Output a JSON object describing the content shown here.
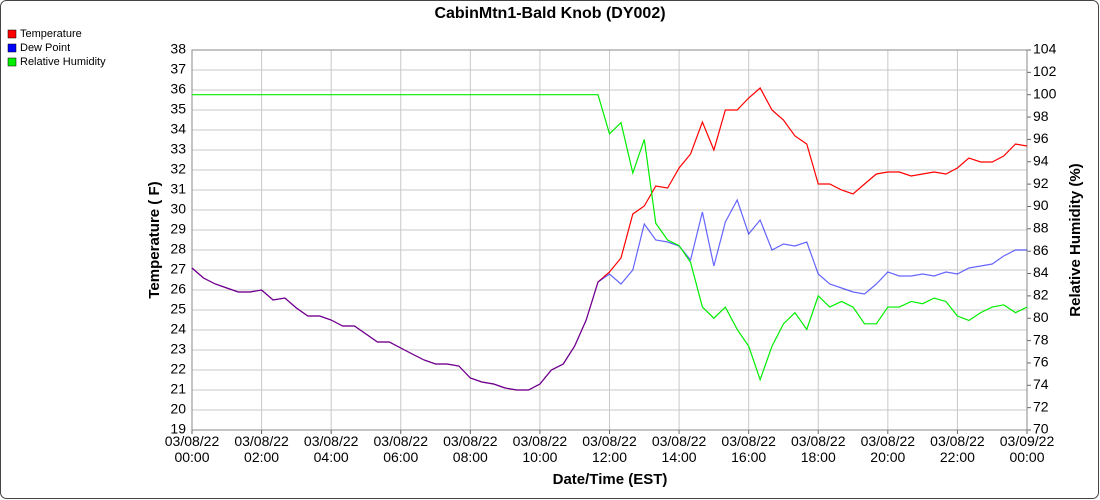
{
  "chart_data": {
    "type": "line",
    "title": "CabinMtn1-Bald Knob (DY002)",
    "x_label": "Date/Time (EST)",
    "y_label": "Temperature ( F)",
    "y2_label": "Relative Humidity (%)",
    "x": [
      0,
      0.33,
      0.67,
      1,
      1.33,
      1.67,
      2,
      2.33,
      2.67,
      3,
      3.33,
      3.67,
      4,
      4.33,
      4.67,
      5,
      5.33,
      5.67,
      6,
      6.33,
      6.67,
      7,
      7.33,
      7.67,
      8,
      8.33,
      8.67,
      9,
      9.33,
      9.67,
      10,
      10.33,
      10.67,
      11,
      11.33,
      11.67,
      12,
      12.33,
      12.67,
      13,
      13.33,
      13.67,
      14,
      14.33,
      14.67,
      15,
      15.33,
      15.67,
      16,
      16.33,
      16.67,
      17,
      17.33,
      17.67,
      18,
      18.33,
      18.67,
      19,
      19.33,
      19.67,
      20,
      20.33,
      20.67,
      21,
      21.33,
      21.67,
      22,
      22.33,
      22.67,
      23,
      23.33,
      23.67,
      24
    ],
    "series": [
      {
        "name": "Temperature",
        "color": "#ff0000",
        "values": [
          27.1,
          26.6,
          26.3,
          26.1,
          25.9,
          25.9,
          26.0,
          25.5,
          25.6,
          25.1,
          24.7,
          24.7,
          24.5,
          24.2,
          24.2,
          23.8,
          23.4,
          23.4,
          23.1,
          22.8,
          22.5,
          22.3,
          22.3,
          22.2,
          21.6,
          21.4,
          21.3,
          21.1,
          21.0,
          21.0,
          21.3,
          22.0,
          22.3,
          23.2,
          24.5,
          26.4,
          26.9,
          27.6,
          29.8,
          30.2,
          31.2,
          31.1,
          32.1,
          32.8,
          34.4,
          33.0,
          35.0,
          35.0,
          35.6,
          36.1,
          35.0,
          34.5,
          33.7,
          33.3,
          31.3,
          31.3,
          31.0,
          30.8,
          31.3,
          31.8,
          31.9,
          31.9,
          31.7,
          31.8,
          31.9,
          31.8,
          32.1,
          32.6,
          32.4,
          32.4,
          32.7,
          33.3,
          33.2
        ]
      },
      {
        "name": "Dew Point",
        "color": "#0000ff",
        "values": [
          27.1,
          26.6,
          26.3,
          26.1,
          25.9,
          25.9,
          26.0,
          25.5,
          25.6,
          25.1,
          24.7,
          24.7,
          24.5,
          24.2,
          24.2,
          23.8,
          23.4,
          23.4,
          23.1,
          22.8,
          22.5,
          22.3,
          22.3,
          22.2,
          21.6,
          21.4,
          21.3,
          21.1,
          21.0,
          21.0,
          21.3,
          22.0,
          22.3,
          23.2,
          24.5,
          26.4,
          26.8,
          26.3,
          27.0,
          29.3,
          28.5,
          28.4,
          28.2,
          27.5,
          29.9,
          27.2,
          29.4,
          30.5,
          28.8,
          29.5,
          28.0,
          28.3,
          28.2,
          28.4,
          26.8,
          26.3,
          26.1,
          25.9,
          25.8,
          26.3,
          26.9,
          26.7,
          26.7,
          26.8,
          26.7,
          26.9,
          26.8,
          27.1,
          27.2,
          27.3,
          27.7,
          28.0,
          28.0
        ]
      },
      {
        "name": "Relative Humidity",
        "color": "#00ee00",
        "axis": "y2",
        "values": [
          100,
          100,
          100,
          100,
          100,
          100,
          100,
          100,
          100,
          100,
          100,
          100,
          100,
          100,
          100,
          100,
          100,
          100,
          100,
          100,
          100,
          100,
          100,
          100,
          100,
          100,
          100,
          100,
          100,
          100,
          100,
          100,
          100,
          100,
          100,
          100,
          96.5,
          97.5,
          93,
          96,
          88.5,
          87,
          86.5,
          85,
          81,
          80,
          81,
          79,
          77.5,
          74.5,
          77.5,
          79.5,
          80.5,
          79,
          82,
          81,
          81.5,
          81,
          79.5,
          79.5,
          81,
          81,
          81.5,
          81.3,
          81.8,
          81.5,
          80.2,
          79.8,
          80.5,
          81,
          81.2,
          80.5,
          81
        ]
      }
    ],
    "xlim": [
      0,
      24
    ],
    "xticks": [
      {
        "value": 0,
        "label": "03/08/22 00:00"
      },
      {
        "value": 2,
        "label": "03/08/22 02:00"
      },
      {
        "value": 4,
        "label": "03/08/22 04:00"
      },
      {
        "value": 6,
        "label": "03/08/22 06:00"
      },
      {
        "value": 8,
        "label": "03/08/22 08:00"
      },
      {
        "value": 10,
        "label": "03/08/22 10:00"
      },
      {
        "value": 12,
        "label": "03/08/22 12:00"
      },
      {
        "value": 14,
        "label": "03/08/22 14:00"
      },
      {
        "value": 16,
        "label": "03/08/22 16:00"
      },
      {
        "value": 18,
        "label": "03/08/22 18:00"
      },
      {
        "value": 20,
        "label": "03/08/22 20:00"
      },
      {
        "value": 22,
        "label": "03/08/22 22:00"
      },
      {
        "value": 24,
        "label": "03/09/22 00:00"
      }
    ],
    "ylim": [
      19,
      38
    ],
    "yticks": [
      19,
      20,
      21,
      22,
      23,
      24,
      25,
      26,
      27,
      28,
      29,
      30,
      31,
      32,
      33,
      34,
      35,
      36,
      37,
      38
    ],
    "y2lim": [
      70,
      104
    ],
    "y2ticks": [
      70,
      72,
      74,
      76,
      78,
      80,
      82,
      84,
      86,
      88,
      90,
      92,
      94,
      96,
      98,
      100,
      102,
      104
    ],
    "grid": true,
    "legend": "top-left"
  }
}
